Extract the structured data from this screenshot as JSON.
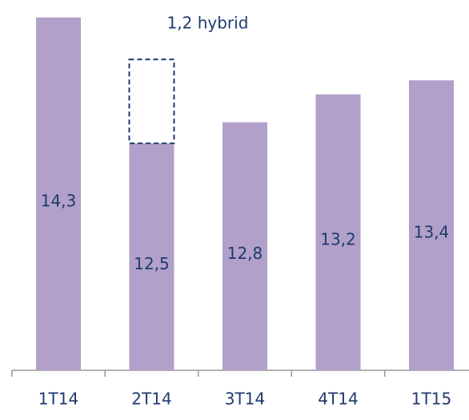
{
  "chart_data": {
    "type": "bar",
    "categories": [
      "1T14",
      "2T14",
      "3T14",
      "4T14",
      "1T15"
    ],
    "values": [
      14.3,
      12.5,
      12.8,
      13.2,
      13.4
    ],
    "value_labels": [
      "14,3",
      "12,5",
      "12,8",
      "13,2",
      "13,4"
    ],
    "color": "#b1a0c9",
    "hybrid_values": [
      null,
      1.2,
      null,
      null,
      null
    ],
    "hybrid_label": "1,2 hybrid",
    "ylim": [
      9.25,
      14.55
    ]
  }
}
